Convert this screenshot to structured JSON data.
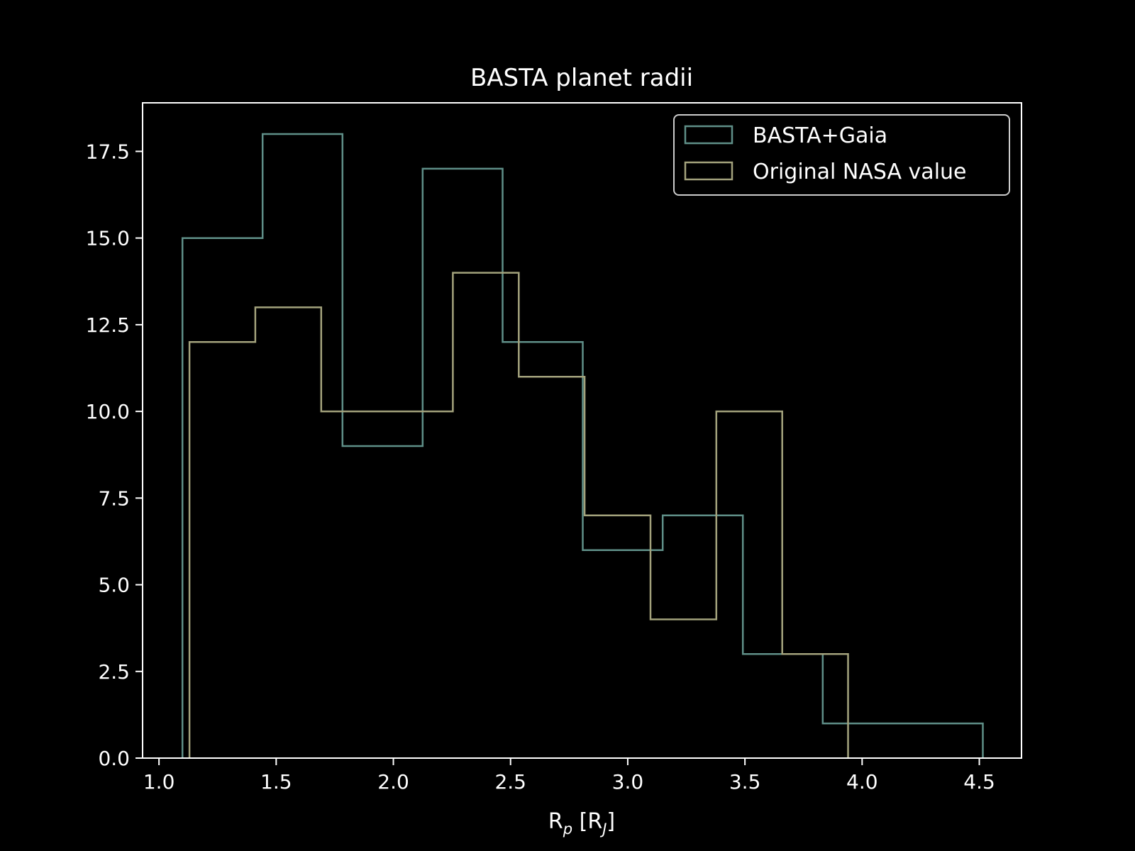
{
  "chart_data": {
    "type": "histogram",
    "title": "BASTA planet radii",
    "xlabel": {
      "base": "R",
      "sub": "p",
      "bracket_open": " [R",
      "bracket_sub": "J",
      "bracket_close": "]"
    },
    "ylabel": "",
    "xlim": [
      0.93,
      4.68
    ],
    "ylim": [
      0,
      18.9
    ],
    "xticks": [
      1.0,
      1.5,
      2.0,
      2.5,
      3.0,
      3.5,
      4.0,
      4.5
    ],
    "xtick_labels": [
      "1.0",
      "1.5",
      "2.0",
      "2.5",
      "3.0",
      "3.5",
      "4.0",
      "4.5"
    ],
    "yticks": [
      0,
      2.5,
      5,
      7.5,
      10,
      12.5,
      15,
      17.5
    ],
    "ytick_labels": [
      "0.0",
      "2.5",
      "5.0",
      "7.5",
      "10.0",
      "12.5",
      "15.0",
      "17.5"
    ],
    "grid": false,
    "legend_position": "top-right",
    "series": [
      {
        "name": "BASTA+Gaia",
        "color": "#5f8f88",
        "bin_edges": [
          1.1,
          1.442,
          1.783,
          2.125,
          2.466,
          2.808,
          3.149,
          3.491,
          3.832,
          4.174,
          4.515
        ],
        "counts": [
          15,
          18,
          9,
          17,
          12,
          6,
          7,
          3,
          1,
          1
        ]
      },
      {
        "name": "Original NASA value",
        "color": "#a3a27c",
        "bin_edges": [
          1.13,
          1.411,
          1.692,
          1.973,
          2.254,
          2.535,
          2.816,
          3.097,
          3.378,
          3.659,
          3.94
        ],
        "counts": [
          12,
          13,
          10,
          10,
          14,
          11,
          7,
          4,
          10,
          3
        ]
      }
    ]
  }
}
